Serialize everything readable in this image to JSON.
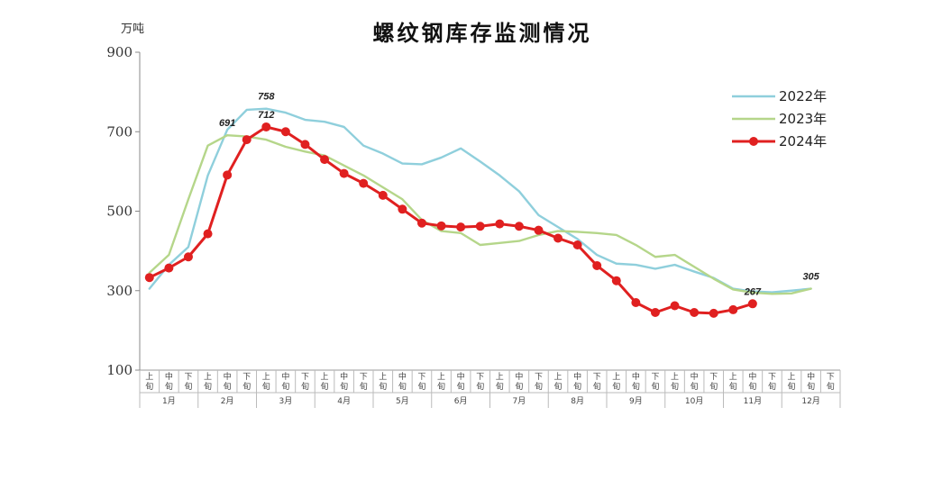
{
  "chart_data": {
    "type": "line",
    "title": "螺纹钢库存监测情况",
    "ylabel": "万吨",
    "ylim": [
      100,
      900
    ],
    "yticks": [
      100,
      300,
      500,
      700,
      900
    ],
    "sub_periods": [
      "上",
      "中",
      "下"
    ],
    "sub_period_second_char": "旬",
    "months": [
      "1月",
      "2月",
      "3月",
      "4月",
      "5月",
      "6月",
      "7月",
      "8月",
      "9月",
      "10月",
      "11月",
      "12月"
    ],
    "grid": false,
    "legend_position": "top-right",
    "series": [
      {
        "name": "2022年",
        "color": "#8fcfdc",
        "marker": false,
        "values": [
          305,
          365,
          410,
          590,
          705,
          755,
          758,
          748,
          730,
          725,
          712,
          665,
          645,
          620,
          618,
          635,
          658,
          625,
          590,
          550,
          490,
          460,
          430,
          390,
          368,
          365,
          355,
          365,
          348,
          332,
          305,
          298,
          296,
          300,
          305
        ]
      },
      {
        "name": "2023年",
        "color": "#b5d68a",
        "marker": false,
        "values": [
          345,
          390,
          530,
          665,
          691,
          688,
          680,
          662,
          650,
          640,
          615,
          590,
          560,
          530,
          478,
          450,
          445,
          415,
          420,
          425,
          440,
          450,
          448,
          445,
          440,
          415,
          385,
          390,
          360,
          330,
          303,
          295,
          292,
          293,
          305
        ]
      },
      {
        "name": "2024年",
        "color": "#e02020",
        "marker": true,
        "values": [
          333,
          357,
          385,
          443,
          591,
          680,
          712,
          700,
          668,
          630,
          595,
          570,
          540,
          505,
          470,
          463,
          460,
          462,
          468,
          462,
          452,
          432,
          415,
          363,
          325,
          270,
          245,
          262,
          245,
          243,
          252,
          267
        ]
      }
    ],
    "annotations": [
      {
        "text": "691",
        "series": "2023年",
        "index": 4
      },
      {
        "text": "758",
        "series": "2022年",
        "index": 6
      },
      {
        "text": "712",
        "series": "2024年",
        "index": 6
      },
      {
        "text": "267",
        "series": "2024年",
        "index": 31
      },
      {
        "text": "305",
        "series": "2022年",
        "index": 34
      }
    ]
  }
}
